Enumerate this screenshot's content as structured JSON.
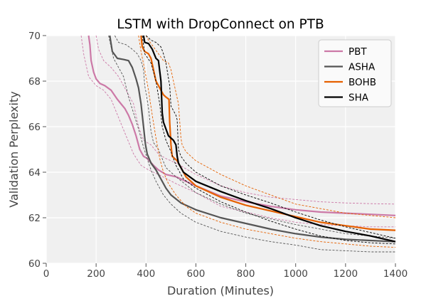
{
  "chart_data": {
    "type": "line",
    "title": "LSTM with DropConnect on PTB",
    "xlabel": "Duration (Minutes)",
    "ylabel": "Validation Perplexity",
    "xlim": [
      0,
      1400
    ],
    "ylim": [
      60,
      70
    ],
    "xticks": [
      0,
      200,
      400,
      600,
      800,
      1000,
      1200,
      1400
    ],
    "yticks": [
      60,
      62,
      64,
      66,
      68,
      70
    ],
    "grid": true,
    "legend_position": "top-right",
    "series": [
      {
        "name": "PBT",
        "color": "#cc79a7",
        "mean": [
          [
            170,
            70
          ],
          [
            175,
            69.6
          ],
          [
            180,
            68.9
          ],
          [
            190,
            68.4
          ],
          [
            200,
            68.1
          ],
          [
            215,
            67.9
          ],
          [
            235,
            67.8
          ],
          [
            260,
            67.6
          ],
          [
            285,
            67.2
          ],
          [
            300,
            67.0
          ],
          [
            315,
            66.8
          ],
          [
            330,
            66.5
          ],
          [
            345,
            66.1
          ],
          [
            360,
            65.6
          ],
          [
            375,
            65.0
          ],
          [
            390,
            64.7
          ],
          [
            405,
            64.6
          ],
          [
            430,
            64.3
          ],
          [
            450,
            64.1
          ],
          [
            480,
            63.9
          ],
          [
            520,
            63.8
          ],
          [
            600,
            63.4
          ],
          [
            700,
            62.95
          ],
          [
            800,
            62.7
          ],
          [
            900,
            62.5
          ],
          [
            1000,
            62.35
          ],
          [
            1100,
            62.25
          ],
          [
            1200,
            62.2
          ],
          [
            1300,
            62.15
          ],
          [
            1400,
            62.1
          ]
        ],
        "lower": [
          [
            140,
            70
          ],
          [
            150,
            69.2
          ],
          [
            170,
            68.2
          ],
          [
            200,
            67.8
          ],
          [
            230,
            67.6
          ],
          [
            260,
            67.2
          ],
          [
            290,
            66.4
          ],
          [
            320,
            65.6
          ],
          [
            350,
            64.8
          ],
          [
            380,
            64.3
          ],
          [
            410,
            64.1
          ],
          [
            450,
            63.9
          ],
          [
            520,
            63.5
          ],
          [
            600,
            63.1
          ],
          [
            700,
            62.5
          ],
          [
            800,
            62.25
          ],
          [
            900,
            62.0
          ],
          [
            1000,
            61.8
          ],
          [
            1100,
            61.7
          ],
          [
            1200,
            61.65
          ],
          [
            1300,
            61.6
          ],
          [
            1400,
            61.6
          ]
        ],
        "upper": [
          [
            200,
            70
          ],
          [
            210,
            69.4
          ],
          [
            230,
            68.9
          ],
          [
            260,
            68.6
          ],
          [
            290,
            68.2
          ],
          [
            320,
            67.6
          ],
          [
            350,
            67.0
          ],
          [
            370,
            66.0
          ],
          [
            390,
            65.4
          ],
          [
            420,
            65.2
          ],
          [
            450,
            64.8
          ],
          [
            480,
            64.6
          ],
          [
            520,
            64.4
          ],
          [
            600,
            63.9
          ],
          [
            700,
            63.4
          ],
          [
            800,
            63.1
          ],
          [
            900,
            62.9
          ],
          [
            1000,
            62.8
          ],
          [
            1100,
            62.7
          ],
          [
            1200,
            62.65
          ],
          [
            1300,
            62.62
          ],
          [
            1400,
            62.6
          ]
        ]
      },
      {
        "name": "ASHA",
        "color": "#555555",
        "mean": [
          [
            255,
            70
          ],
          [
            265,
            69.3
          ],
          [
            285,
            69.0
          ],
          [
            310,
            68.95
          ],
          [
            330,
            68.9
          ],
          [
            345,
            68.6
          ],
          [
            360,
            68.1
          ],
          [
            370,
            67.7
          ],
          [
            380,
            67.0
          ],
          [
            390,
            66.0
          ],
          [
            398,
            65.2
          ],
          [
            405,
            64.8
          ],
          [
            420,
            64.4
          ],
          [
            440,
            64.1
          ],
          [
            460,
            63.7
          ],
          [
            480,
            63.3
          ],
          [
            500,
            63.0
          ],
          [
            540,
            62.65
          ],
          [
            600,
            62.35
          ],
          [
            700,
            62.0
          ],
          [
            800,
            61.75
          ],
          [
            900,
            61.5
          ],
          [
            1000,
            61.3
          ],
          [
            1100,
            61.15
          ],
          [
            1200,
            61.05
          ],
          [
            1300,
            61.0
          ],
          [
            1400,
            60.95
          ]
        ],
        "lower": [
          [
            250,
            70
          ],
          [
            270,
            69.0
          ],
          [
            290,
            68.6
          ],
          [
            310,
            68.2
          ],
          [
            330,
            67.3
          ],
          [
            350,
            66.6
          ],
          [
            370,
            65.9
          ],
          [
            390,
            65.1
          ],
          [
            405,
            64.6
          ],
          [
            420,
            64.1
          ],
          [
            440,
            63.6
          ],
          [
            470,
            63.0
          ],
          [
            500,
            62.6
          ],
          [
            540,
            62.2
          ],
          [
            600,
            61.8
          ],
          [
            700,
            61.4
          ],
          [
            800,
            61.15
          ],
          [
            900,
            60.95
          ],
          [
            1000,
            60.8
          ],
          [
            1100,
            60.6
          ],
          [
            1200,
            60.55
          ],
          [
            1300,
            60.5
          ],
          [
            1400,
            60.5
          ]
        ],
        "upper": [
          [
            275,
            70
          ],
          [
            290,
            69.7
          ],
          [
            320,
            69.6
          ],
          [
            345,
            69.4
          ],
          [
            365,
            69.2
          ],
          [
            380,
            68.9
          ],
          [
            390,
            68.5
          ],
          [
            395,
            67.8
          ],
          [
            400,
            67.5
          ],
          [
            410,
            66.8
          ],
          [
            420,
            65.8
          ],
          [
            430,
            65.3
          ],
          [
            450,
            65.0
          ],
          [
            480,
            64.2
          ],
          [
            520,
            63.8
          ],
          [
            600,
            63.1
          ],
          [
            700,
            62.6
          ],
          [
            800,
            62.2
          ],
          [
            900,
            61.95
          ],
          [
            1000,
            61.7
          ],
          [
            1100,
            61.5
          ],
          [
            1200,
            61.3
          ],
          [
            1300,
            61.2
          ],
          [
            1400,
            61.1
          ]
        ]
      },
      {
        "name": "BOHB",
        "color": "#e66100",
        "mean": [
          [
            380,
            70
          ],
          [
            385,
            69.5
          ],
          [
            395,
            69.3
          ],
          [
            410,
            69.2
          ],
          [
            420,
            69.0
          ],
          [
            430,
            68.5
          ],
          [
            440,
            68.0
          ],
          [
            450,
            67.8
          ],
          [
            460,
            67.6
          ],
          [
            470,
            67.4
          ],
          [
            480,
            67.3
          ],
          [
            492,
            67.2
          ],
          [
            495,
            66.2
          ],
          [
            500,
            65.2
          ],
          [
            505,
            64.7
          ],
          [
            525,
            64.5
          ],
          [
            540,
            64.2
          ],
          [
            560,
            63.8
          ],
          [
            600,
            63.4
          ],
          [
            700,
            62.9
          ],
          [
            800,
            62.55
          ],
          [
            900,
            62.3
          ],
          [
            1000,
            62.05
          ],
          [
            1100,
            61.8
          ],
          [
            1200,
            61.65
          ],
          [
            1300,
            61.5
          ],
          [
            1400,
            61.45
          ]
        ],
        "lower": [
          [
            370,
            70
          ],
          [
            380,
            69.3
          ],
          [
            395,
            68.5
          ],
          [
            410,
            67.6
          ],
          [
            425,
            66.5
          ],
          [
            440,
            65.5
          ],
          [
            455,
            64.6
          ],
          [
            470,
            64.0
          ],
          [
            490,
            63.5
          ],
          [
            520,
            63.0
          ],
          [
            560,
            62.5
          ],
          [
            600,
            62.2
          ],
          [
            700,
            61.8
          ],
          [
            800,
            61.5
          ],
          [
            900,
            61.3
          ],
          [
            1000,
            61.1
          ],
          [
            1100,
            60.95
          ],
          [
            1200,
            60.85
          ],
          [
            1300,
            60.75
          ],
          [
            1400,
            60.7
          ]
        ],
        "upper": [
          [
            400,
            70
          ],
          [
            410,
            69.8
          ],
          [
            430,
            69.5
          ],
          [
            450,
            69.2
          ],
          [
            470,
            68.9
          ],
          [
            490,
            68.8
          ],
          [
            500,
            68.5
          ],
          [
            510,
            68.0
          ],
          [
            520,
            67.5
          ],
          [
            530,
            67.0
          ],
          [
            540,
            65.5
          ],
          [
            545,
            65.2
          ],
          [
            560,
            64.9
          ],
          [
            600,
            64.5
          ],
          [
            700,
            63.9
          ],
          [
            800,
            63.4
          ],
          [
            900,
            63.0
          ],
          [
            1000,
            62.6
          ],
          [
            1100,
            62.4
          ],
          [
            1200,
            62.2
          ],
          [
            1300,
            62.1
          ],
          [
            1400,
            62.0
          ]
        ]
      },
      {
        "name": "SHA",
        "color": "#000000",
        "mean": [
          [
            390,
            70
          ],
          [
            395,
            69.7
          ],
          [
            410,
            69.65
          ],
          [
            425,
            69.4
          ],
          [
            440,
            69.0
          ],
          [
            450,
            68.9
          ],
          [
            460,
            68.0
          ],
          [
            465,
            66.6
          ],
          [
            470,
            66.2
          ],
          [
            480,
            65.9
          ],
          [
            490,
            65.6
          ],
          [
            500,
            65.5
          ],
          [
            510,
            65.4
          ],
          [
            520,
            65.2
          ],
          [
            525,
            64.7
          ],
          [
            530,
            64.4
          ],
          [
            550,
            64.0
          ],
          [
            600,
            63.6
          ],
          [
            700,
            63.15
          ],
          [
            800,
            62.75
          ],
          [
            900,
            62.4
          ],
          [
            1000,
            62.0
          ],
          [
            1100,
            61.65
          ],
          [
            1200,
            61.4
          ],
          [
            1300,
            61.2
          ],
          [
            1400,
            60.95
          ]
        ],
        "lower": [
          [
            385,
            70
          ],
          [
            395,
            69.2
          ],
          [
            420,
            68.8
          ],
          [
            440,
            68.0
          ],
          [
            455,
            67.0
          ],
          [
            465,
            66.0
          ],
          [
            480,
            65.4
          ],
          [
            500,
            64.9
          ],
          [
            520,
            64.3
          ],
          [
            550,
            63.7
          ],
          [
            600,
            63.3
          ],
          [
            700,
            62.7
          ],
          [
            800,
            62.25
          ],
          [
            900,
            61.85
          ],
          [
            1000,
            61.5
          ],
          [
            1100,
            61.2
          ],
          [
            1200,
            61.0
          ],
          [
            1300,
            60.9
          ],
          [
            1400,
            60.85
          ]
        ],
        "upper": [
          [
            400,
            70
          ],
          [
            420,
            69.8
          ],
          [
            440,
            69.7
          ],
          [
            460,
            69.5
          ],
          [
            470,
            69.2
          ],
          [
            480,
            68.8
          ],
          [
            495,
            67.8
          ],
          [
            500,
            66.9
          ],
          [
            510,
            66.7
          ],
          [
            520,
            66.5
          ],
          [
            525,
            66.3
          ],
          [
            530,
            65.0
          ],
          [
            540,
            64.7
          ],
          [
            560,
            64.4
          ],
          [
            600,
            64.0
          ],
          [
            700,
            63.4
          ],
          [
            800,
            63.0
          ],
          [
            900,
            62.65
          ],
          [
            1000,
            62.25
          ],
          [
            1100,
            61.9
          ],
          [
            1200,
            61.6
          ],
          [
            1300,
            61.35
          ],
          [
            1400,
            61.1
          ]
        ]
      }
    ]
  }
}
